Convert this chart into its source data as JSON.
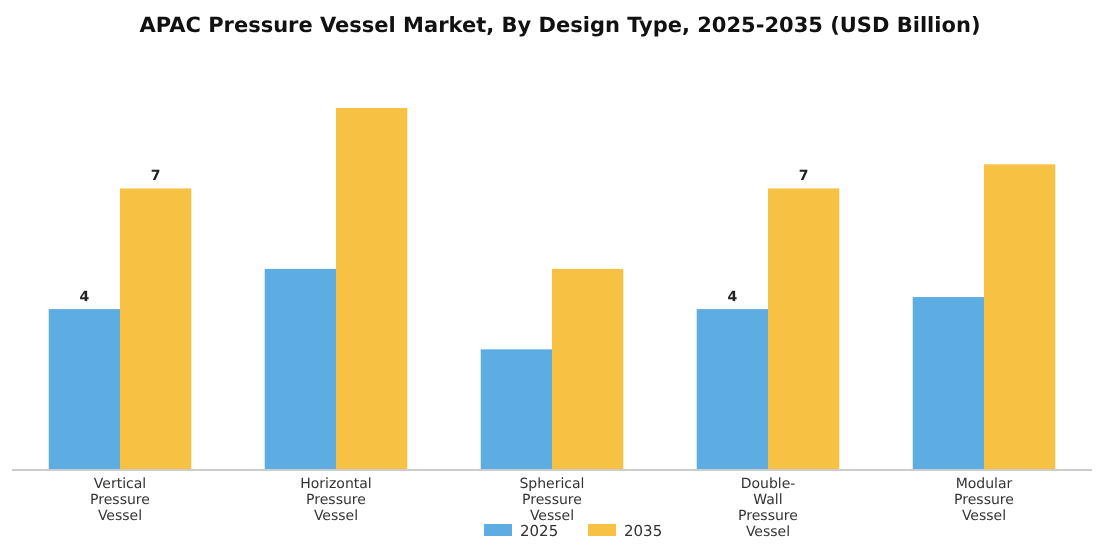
{
  "chart_data": {
    "type": "bar",
    "title": "APAC Pressure Vessel Market, By Design Type, 2025-2035 (USD Billion)",
    "categories": [
      "Vertical Pressure Vessel",
      "Horizontal Pressure Vessel",
      "Spherical Pressure Vessel",
      "Double-Wall Pressure Vessel",
      "Modular Pressure Vessel"
    ],
    "series": [
      {
        "name": "2025",
        "color": "#5dade2",
        "values": [
          4,
          5.0,
          3.0,
          4,
          4.3
        ],
        "value_labels": [
          "4",
          null,
          null,
          "4",
          null
        ]
      },
      {
        "name": "2035",
        "color": "#f7c244",
        "values": [
          7,
          9.0,
          5.0,
          7,
          7.6
        ],
        "value_labels": [
          "7",
          null,
          null,
          "7",
          null
        ]
      }
    ],
    "legend": "bottom",
    "grid": false
  }
}
